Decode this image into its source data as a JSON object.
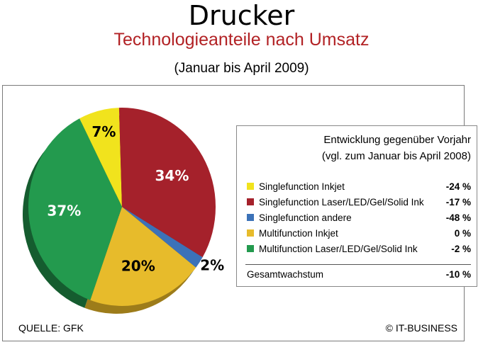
{
  "header": {
    "title": "Drucker",
    "subtitle": "Technologieanteile nach Umsatz",
    "period": "(Januar bis April 2009)"
  },
  "legend": {
    "heading_line1": "Entwicklung gegenüber Vorjahr",
    "heading_line2": "(vgl. zum Januar bis April 2008)",
    "total_label": "Gesamtwachstum",
    "total_value": "-10 %"
  },
  "footer": {
    "source": "QUELLE: GFK",
    "copyright": "© IT-BUSINESS"
  },
  "chart_data": {
    "type": "pie",
    "title": "Technologieanteile nach Umsatz",
    "categories": [
      "Singlefunction Inkjet",
      "Singlefunction Laser/LED/Gel/Solid Ink",
      "Singlefunction andere",
      "Multifunction Inkjet",
      "Multifunction Laser/LED/Gel/Solid Ink"
    ],
    "values": [
      7,
      34,
      2,
      20,
      37
    ],
    "value_labels": [
      "7%",
      "34%",
      "2%",
      "20%",
      "37%"
    ],
    "growth": [
      "-24 %",
      "-17 %",
      "-48 %",
      "0 %",
      "-2 %"
    ],
    "colors": [
      "#f1e31d",
      "#a5212b",
      "#3c72b8",
      "#e7bb2b",
      "#239a4e"
    ],
    "shadow_colors": [
      "#b8a915",
      "#6e141c",
      "#244f86",
      "#9d7c1a",
      "#155c2f"
    ],
    "label_colors": [
      "#000000",
      "#ffffff",
      "#000000",
      "#000000",
      "#ffffff"
    ],
    "legend_position": "right"
  }
}
